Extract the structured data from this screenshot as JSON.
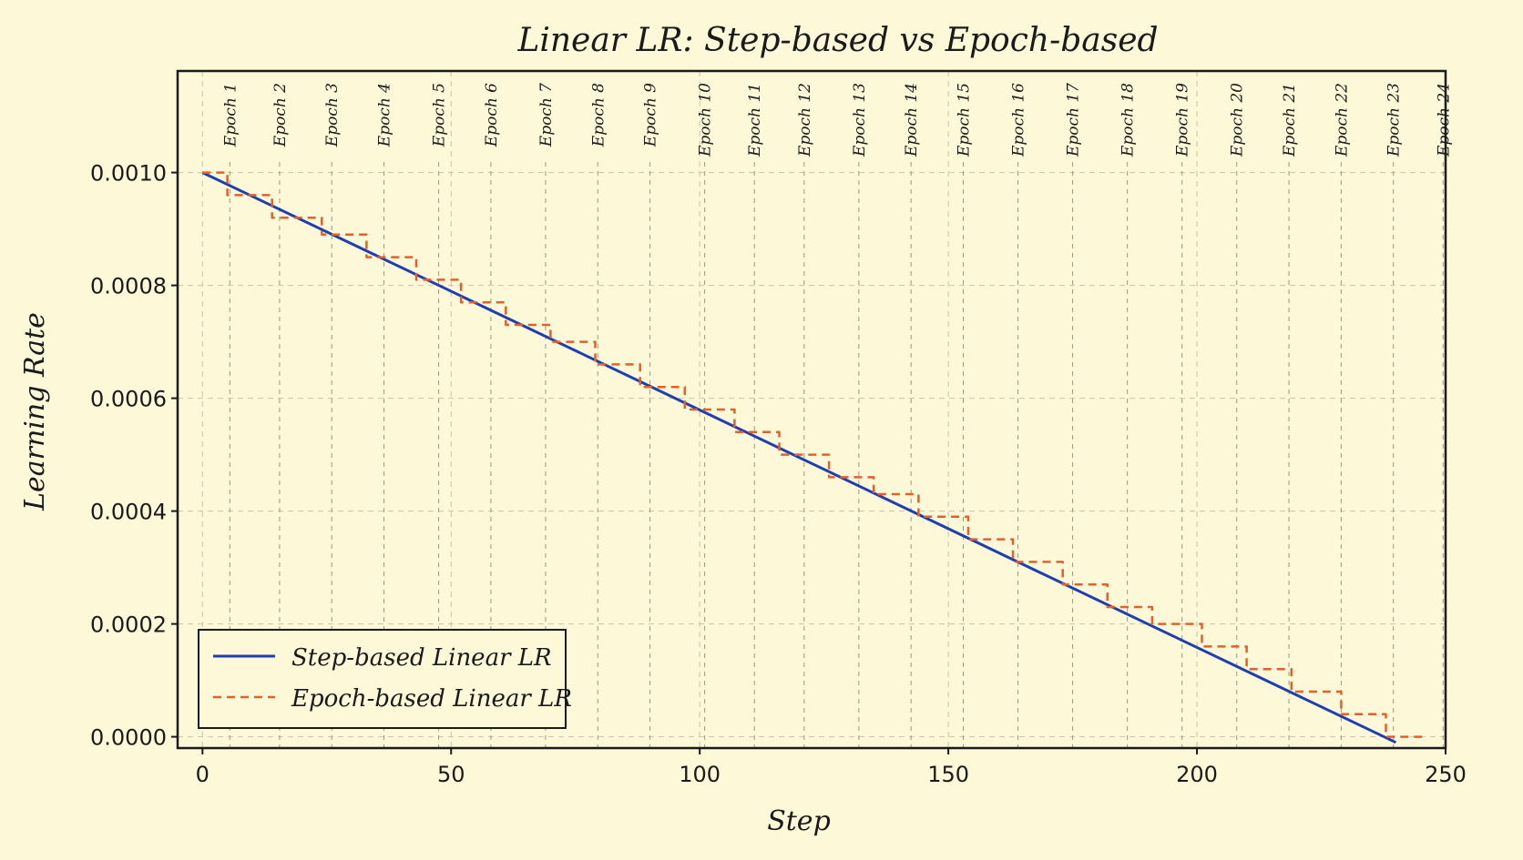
{
  "colors": {
    "background": "#fdf8d8",
    "step_line": "#1f3fb0",
    "epoch_line": "#e0612a",
    "grid": "#c9c3a8",
    "axes": "#1a1a1a"
  },
  "chart_data": {
    "type": "line",
    "title": "Linear LR: Step-based vs Epoch-based",
    "xlabel": "Step",
    "ylabel": "Learning Rate",
    "xlim": [
      -5,
      250
    ],
    "ylim": [
      -2e-05,
      0.00118
    ],
    "x_ticks": [
      0,
      50,
      100,
      150,
      200,
      250
    ],
    "x_tick_labels": [
      "0",
      "50",
      "100",
      "150",
      "200",
      "250"
    ],
    "y_ticks": [
      0.0,
      0.0002,
      0.0004,
      0.0006,
      0.0008,
      0.001
    ],
    "y_tick_labels": [
      "0.0000",
      "0.0002",
      "0.0004",
      "0.0006",
      "0.0008",
      "0.0010"
    ],
    "grid": true,
    "legend_position": "lower-left",
    "epoch_boundaries": [
      5.5,
      15.5,
      26,
      36.5,
      47.5,
      58,
      69,
      79.5,
      90,
      101,
      111,
      121,
      132,
      142.5,
      153,
      164,
      175,
      186,
      197,
      208,
      218.5,
      229,
      239.5,
      249.5
    ],
    "epoch_labels": [
      "Epoch 1",
      "Epoch 2",
      "Epoch 3",
      "Epoch 4",
      "Epoch 5",
      "Epoch 6",
      "Epoch 7",
      "Epoch 8",
      "Epoch 9",
      "Epoch 10",
      "Epoch 11",
      "Epoch 12",
      "Epoch 13",
      "Epoch 14",
      "Epoch 15",
      "Epoch 16",
      "Epoch 17",
      "Epoch 18",
      "Epoch 19",
      "Epoch 20",
      "Epoch 21",
      "Epoch 22",
      "Epoch 23",
      "Epoch 24"
    ],
    "series": [
      {
        "name": "Step-based Linear LR",
        "style": "solid",
        "x": [
          0,
          240
        ],
        "y": [
          0.001,
          -1e-05
        ]
      },
      {
        "name": "Epoch-based Linear LR",
        "style": "dashed",
        "x": [
          0,
          5,
          5,
          14,
          14,
          24,
          24,
          33,
          33,
          43,
          43,
          52,
          52,
          61,
          61,
          70,
          70,
          79,
          79,
          88,
          88,
          97,
          97,
          107,
          107,
          116,
          116,
          126,
          126,
          135,
          135,
          144,
          144,
          154,
          154,
          163,
          163,
          173,
          173,
          182,
          182,
          191,
          191,
          201,
          201,
          210,
          210,
          219,
          219,
          229,
          229,
          238,
          238,
          246
        ],
        "y": [
          0.001,
          0.001,
          0.00096,
          0.00096,
          0.00092,
          0.00092,
          0.00089,
          0.00089,
          0.00085,
          0.00085,
          0.00081,
          0.00081,
          0.00077,
          0.00077,
          0.00073,
          0.00073,
          0.0007,
          0.0007,
          0.00066,
          0.00066,
          0.00062,
          0.00062,
          0.00058,
          0.00058,
          0.00054,
          0.00054,
          0.0005,
          0.0005,
          0.00046,
          0.00046,
          0.00043,
          0.00043,
          0.00039,
          0.00039,
          0.00035,
          0.00035,
          0.00031,
          0.00031,
          0.00027,
          0.00027,
          0.00023,
          0.00023,
          0.0002,
          0.0002,
          0.00016,
          0.00016,
          0.00012,
          0.00012,
          8e-05,
          8e-05,
          4e-05,
          4e-05,
          0.0,
          0.0
        ]
      }
    ]
  }
}
